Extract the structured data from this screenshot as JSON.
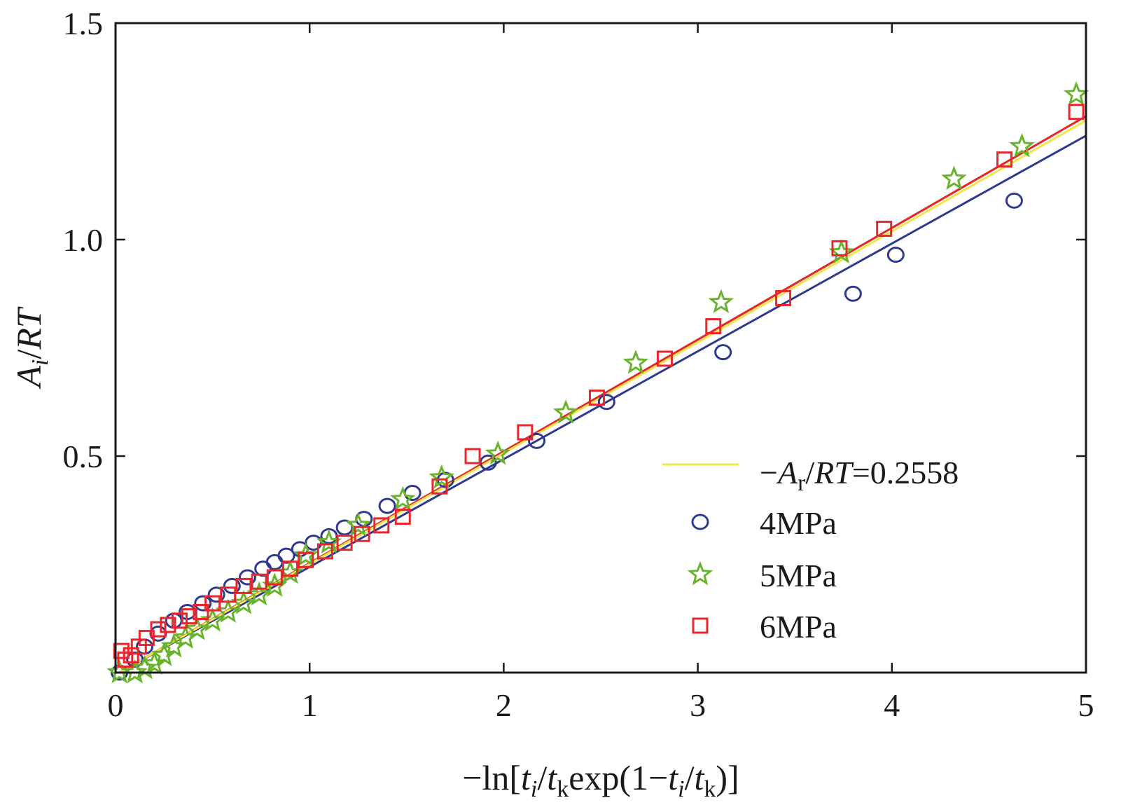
{
  "chart_data": {
    "type": "scatter",
    "title": "",
    "xlabel": "−ln[t_i/t_k exp(1−t_i/t_k)]",
    "ylabel": "A_i/RT",
    "xlim": [
      0,
      5
    ],
    "ylim": [
      0,
      1.5
    ],
    "x_ticks": [
      "0",
      "1",
      "2",
      "3",
      "4",
      "5"
    ],
    "y_ticks": [
      "0.5",
      "1.0",
      "1.5"
    ],
    "legend_position": "lower-right",
    "fit_label": {
      "prefix": "−",
      "A": "A",
      "A_sub": "r",
      "rest": "/",
      "RT": "RT",
      "value": "=0.2558"
    },
    "colors": {
      "fit": "#f2e64a",
      "4MPa": "#2f3a8f",
      "5MPa": "#6ab42d",
      "6MPa": "#e8262b",
      "axis": "#1a1a1a"
    },
    "series": [
      {
        "name": "4MPa",
        "marker": "circle",
        "fit": {
          "x": [
            0.02,
            5.0
          ],
          "y": [
            0.0,
            1.24
          ]
        },
        "x": [
          0.02,
          0.1,
          0.15,
          0.22,
          0.3,
          0.37,
          0.45,
          0.52,
          0.6,
          0.68,
          0.76,
          0.82,
          0.88,
          0.95,
          1.02,
          1.1,
          1.18,
          1.28,
          1.4,
          1.53,
          1.7,
          1.92,
          2.17,
          2.53,
          3.13,
          3.8,
          4.02,
          4.63
        ],
        "y": [
          0.0,
          0.03,
          0.06,
          0.09,
          0.12,
          0.14,
          0.16,
          0.18,
          0.2,
          0.22,
          0.24,
          0.255,
          0.27,
          0.285,
          0.3,
          0.315,
          0.335,
          0.355,
          0.385,
          0.415,
          0.445,
          0.485,
          0.535,
          0.625,
          0.74,
          0.875,
          0.965,
          1.09
        ]
      },
      {
        "name": "5MPa",
        "marker": "star",
        "fit": {
          "x": [
            0.02,
            5.0
          ],
          "y": [
            0.0,
            1.285
          ]
        },
        "x": [
          0.02,
          0.1,
          0.15,
          0.2,
          0.25,
          0.3,
          0.36,
          0.42,
          0.5,
          0.58,
          0.66,
          0.74,
          0.82,
          0.9,
          0.98,
          1.1,
          1.25,
          1.48,
          1.68,
          1.97,
          2.32,
          2.68,
          3.12,
          3.74,
          4.32,
          4.67,
          4.95
        ],
        "y": [
          0.0,
          0.0,
          0.01,
          0.02,
          0.04,
          0.06,
          0.08,
          0.1,
          0.12,
          0.14,
          0.16,
          0.18,
          0.2,
          0.23,
          0.27,
          0.3,
          0.34,
          0.4,
          0.45,
          0.505,
          0.6,
          0.715,
          0.855,
          0.97,
          1.14,
          1.215,
          1.335
        ]
      },
      {
        "name": "6MPa",
        "marker": "square",
        "fit": {
          "x": [
            0.02,
            5.0
          ],
          "y": [
            0.0,
            1.285
          ]
        },
        "x": [
          0.03,
          0.05,
          0.08,
          0.12,
          0.16,
          0.22,
          0.27,
          0.33,
          0.38,
          0.44,
          0.5,
          0.58,
          0.66,
          0.74,
          0.82,
          0.9,
          0.98,
          1.08,
          1.18,
          1.27,
          1.37,
          1.48,
          1.67,
          1.84,
          2.11,
          2.48,
          2.83,
          3.08,
          3.44,
          3.73,
          3.96,
          4.58,
          4.95
        ],
        "y": [
          0.05,
          0.03,
          0.04,
          0.06,
          0.08,
          0.1,
          0.11,
          0.12,
          0.13,
          0.14,
          0.16,
          0.18,
          0.2,
          0.21,
          0.22,
          0.24,
          0.26,
          0.28,
          0.3,
          0.32,
          0.34,
          0.36,
          0.43,
          0.5,
          0.555,
          0.635,
          0.725,
          0.8,
          0.865,
          0.98,
          1.025,
          1.185,
          1.295
        ]
      }
    ]
  }
}
